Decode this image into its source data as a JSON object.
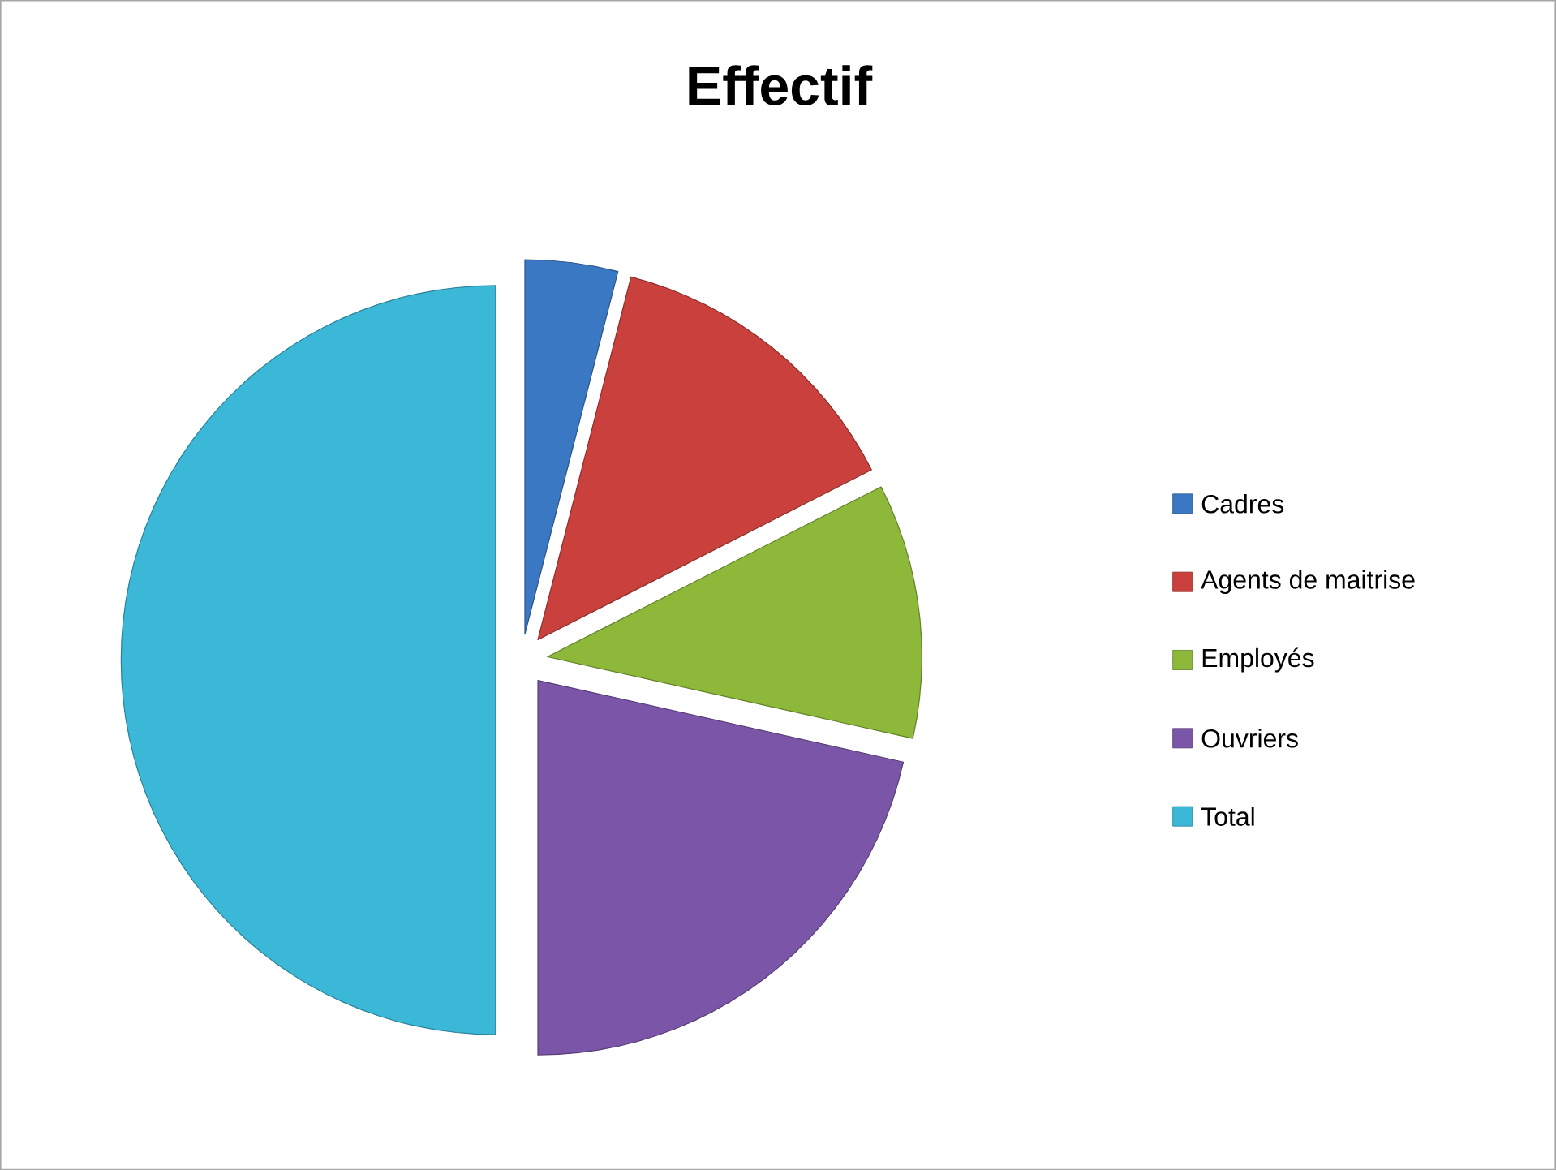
{
  "chart_data": {
    "type": "pie",
    "title": "Effectif",
    "categories": [
      "Cadres",
      "Agents de maitrise",
      "Employés",
      "Ouvriers",
      "Total"
    ],
    "values": [
      4,
      13.5,
      11,
      21.5,
      50
    ],
    "colors": [
      "#3a78c4",
      "#c9403c",
      "#8db83a",
      "#7b56a8",
      "#3bb8d8"
    ],
    "legend": "right"
  }
}
